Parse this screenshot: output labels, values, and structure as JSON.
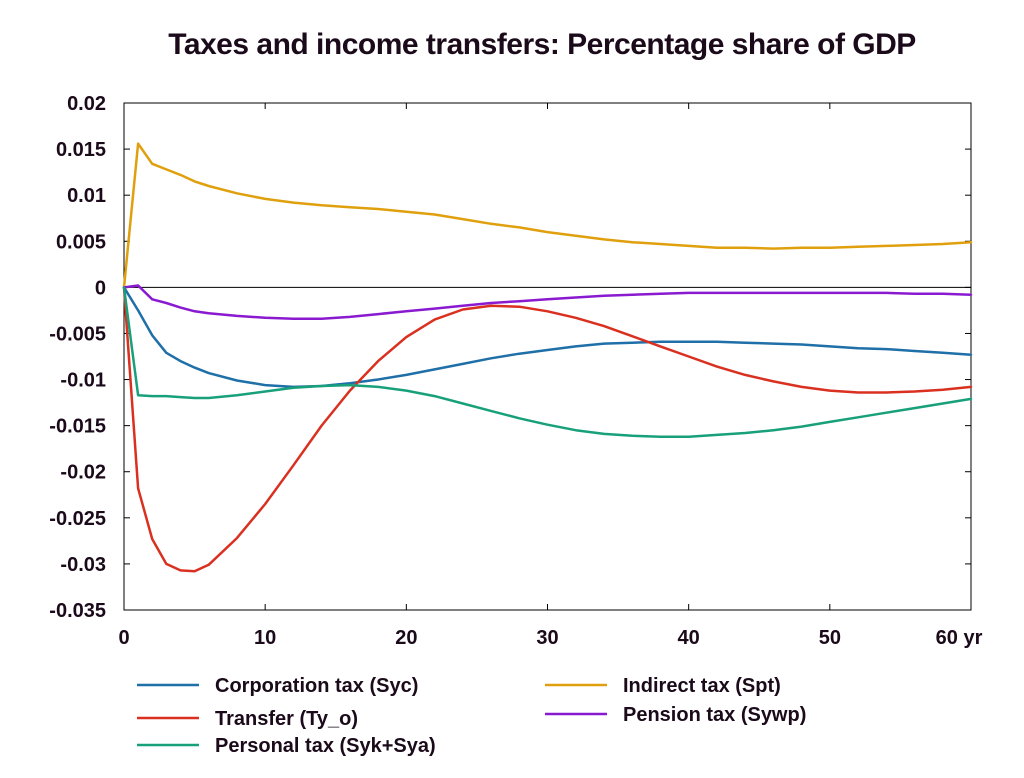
{
  "chart_data": {
    "type": "line",
    "title": "Taxes and income transfers: Percentage share of GDP",
    "xlabel": "",
    "ylabel": "",
    "x_unit_label": "yr",
    "xlim": [
      0,
      60
    ],
    "ylim": [
      -0.035,
      0.02
    ],
    "x_ticks": [
      "0",
      "10",
      "20",
      "30",
      "40",
      "50",
      "60 yr"
    ],
    "y_ticks": [
      "0.02",
      "0.015",
      "0.01",
      "0.005",
      "0",
      "-0.005",
      "-0.01",
      "-0.015",
      "-0.02",
      "-0.025",
      "-0.03",
      "-0.035"
    ],
    "grid": false,
    "legend_position": "bottom",
    "x": [
      0,
      1,
      2,
      3,
      4,
      5,
      6,
      8,
      10,
      12,
      14,
      16,
      18,
      20,
      22,
      24,
      26,
      28,
      30,
      32,
      34,
      36,
      38,
      40,
      42,
      44,
      46,
      48,
      50,
      52,
      54,
      56,
      58,
      60
    ],
    "series": [
      {
        "name": "Corporation tax (Syc)",
        "color": "#1f6fa8",
        "values": [
          0,
          -0.0025,
          -0.0052,
          -0.0071,
          -0.008,
          -0.0087,
          -0.0093,
          -0.0101,
          -0.0106,
          -0.0108,
          -0.0107,
          -0.0104,
          -0.01,
          -0.0095,
          -0.0089,
          -0.0083,
          -0.0077,
          -0.0072,
          -0.0068,
          -0.0064,
          -0.0061,
          -0.006,
          -0.0059,
          -0.0059,
          -0.0059,
          -0.006,
          -0.0061,
          -0.0062,
          -0.0064,
          -0.0066,
          -0.0067,
          -0.0069,
          -0.0071,
          -0.0073
        ]
      },
      {
        "name": "Indirect tax (Spt)",
        "color": "#e0a00e",
        "values": [
          0,
          0.0156,
          0.0134,
          0.0128,
          0.0122,
          0.0115,
          0.011,
          0.0102,
          0.0096,
          0.0092,
          0.0089,
          0.0087,
          0.0085,
          0.0082,
          0.0079,
          0.0074,
          0.0069,
          0.0065,
          0.006,
          0.0056,
          0.0052,
          0.0049,
          0.0047,
          0.0045,
          0.0043,
          0.0043,
          0.0042,
          0.0043,
          0.0043,
          0.0044,
          0.0045,
          0.0046,
          0.0047,
          0.0049
        ]
      },
      {
        "name": "Transfer (Ty_o)",
        "color": "#d93020",
        "values": [
          0,
          -0.0218,
          -0.0273,
          -0.03,
          -0.0307,
          -0.0308,
          -0.0301,
          -0.0272,
          -0.0235,
          -0.0193,
          -0.015,
          -0.0112,
          -0.008,
          -0.0054,
          -0.0035,
          -0.0024,
          -0.002,
          -0.0021,
          -0.0026,
          -0.0033,
          -0.0042,
          -0.0053,
          -0.0064,
          -0.0075,
          -0.0086,
          -0.0095,
          -0.0102,
          -0.0108,
          -0.0112,
          -0.0114,
          -0.0114,
          -0.0113,
          -0.0111,
          -0.0108
        ]
      },
      {
        "name": "Pension tax (Sywp)",
        "color": "#8a1ad0",
        "values": [
          0,
          0.0002,
          -0.0013,
          -0.0017,
          -0.0022,
          -0.0026,
          -0.0028,
          -0.0031,
          -0.0033,
          -0.0034,
          -0.0034,
          -0.0032,
          -0.0029,
          -0.0026,
          -0.0023,
          -0.002,
          -0.0017,
          -0.0015,
          -0.0013,
          -0.0011,
          -0.0009,
          -0.0008,
          -0.0007,
          -0.0006,
          -0.0006,
          -0.0006,
          -0.0006,
          -0.0006,
          -0.0006,
          -0.0006,
          -0.0006,
          -0.0007,
          -0.0007,
          -0.0008
        ]
      },
      {
        "name": "Personal tax (Syk+Sya)",
        "color": "#18a07a",
        "values": [
          0,
          -0.0117,
          -0.0118,
          -0.0118,
          -0.0119,
          -0.012,
          -0.012,
          -0.0117,
          -0.0113,
          -0.0109,
          -0.0107,
          -0.0106,
          -0.0108,
          -0.0112,
          -0.0118,
          -0.0126,
          -0.0134,
          -0.0142,
          -0.0149,
          -0.0155,
          -0.0159,
          -0.0161,
          -0.0162,
          -0.0162,
          -0.016,
          -0.0158,
          -0.0155,
          -0.0151,
          -0.0146,
          -0.0141,
          -0.0136,
          -0.0131,
          -0.0126,
          -0.0121
        ]
      }
    ],
    "legend_order": [
      0,
      1,
      2,
      3,
      4
    ]
  }
}
